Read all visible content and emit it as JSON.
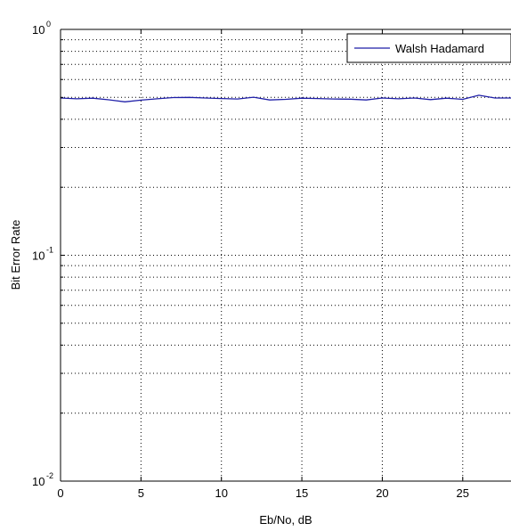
{
  "chart_data": {
    "type": "line",
    "title": "",
    "xlabel": "Eb/No, dB",
    "ylabel": "Bit Error Rate",
    "xlim": [
      0,
      28
    ],
    "ylim": [
      0.01,
      1
    ],
    "yscale": "log",
    "grid": true,
    "legend_placement": "top-right",
    "x_ticks": [
      {
        "value": 0,
        "label": "0"
      },
      {
        "value": 5,
        "label": "5"
      },
      {
        "value": 10,
        "label": "10"
      },
      {
        "value": 15,
        "label": "15"
      },
      {
        "value": 20,
        "label": "20"
      },
      {
        "value": 25,
        "label": "25"
      }
    ],
    "y_ticks": [
      {
        "value": 1,
        "base": "10",
        "exp": "0"
      },
      {
        "value": 0.1,
        "base": "10",
        "exp": "-1"
      },
      {
        "value": 0.01,
        "base": "10",
        "exp": "-2"
      }
    ],
    "series": [
      {
        "name": "Walsh Hadamard",
        "color": "#1f1fa8",
        "x": [
          0,
          1,
          2,
          3,
          4,
          5,
          6,
          7,
          8,
          9,
          10,
          11,
          12,
          13,
          14,
          15,
          16,
          17,
          18,
          19,
          20,
          21,
          22,
          23,
          24,
          25,
          26,
          27,
          28
        ],
        "y": [
          0.497,
          0.493,
          0.496,
          0.488,
          0.478,
          0.486,
          0.493,
          0.499,
          0.5,
          0.497,
          0.494,
          0.492,
          0.501,
          0.487,
          0.49,
          0.496,
          0.494,
          0.492,
          0.491,
          0.487,
          0.497,
          0.493,
          0.497,
          0.489,
          0.496,
          0.49,
          0.511,
          0.497,
          0.497
        ]
      }
    ]
  }
}
